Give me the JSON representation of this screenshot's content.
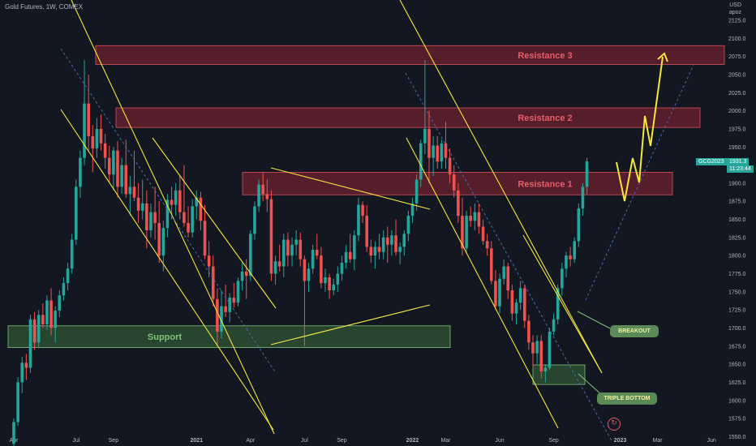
{
  "header": {
    "title": "Gold Futures, 1W, COMEX"
  },
  "price_axis": {
    "unit_line1": "USD",
    "unit_line2": "apoz"
  },
  "current_price": {
    "symbol": "GCG2023",
    "price": "1931.3",
    "countdown": "11:23:44",
    "color": "#26a69a"
  },
  "colors": {
    "background": "#131722",
    "up": "#26a69a",
    "down": "#ef5350",
    "resistance_fill": "#8c2532",
    "resistance_border": "#e0505c",
    "support_fill": "#3b6b3a",
    "support_border": "#7fc27a",
    "trendline": "#f5e642"
  },
  "annotations": {
    "resistance1": "Resistance 1",
    "resistance2": "Resistance 2",
    "resistance3": "Resistance 3",
    "support": "Support",
    "breakout": "BREAKOUT",
    "triple_bottom": "TRIPLE BOTTOM"
  },
  "chart_data": {
    "type": "candlestick",
    "title": "Gold Futures, 1W, COMEX",
    "ylabel": "USD apoz",
    "ylim": [
      1537,
      2153
    ],
    "y_ticks": [
      1550,
      1575,
      1600,
      1625,
      1650,
      1675,
      1700,
      1725,
      1750,
      1775,
      1800,
      1825,
      1850,
      1875,
      1900,
      1925,
      1950,
      1975,
      2000,
      2025,
      2050,
      2075,
      2100,
      2125
    ],
    "x_tick_labels": [
      "Apr",
      "Jul",
      "Sep",
      "2021",
      "Apr",
      "Jul",
      "Sep",
      "2022",
      "Mar",
      "Jun",
      "Sep",
      "2023",
      "Mar",
      "Jun"
    ],
    "x_tick_weeks": [
      0,
      15,
      24,
      44,
      57,
      70,
      79,
      96,
      104,
      117,
      130,
      146,
      155,
      168
    ],
    "series": [
      {
        "ohlc": [
          [
            1540,
            1575,
            1530,
            1570
          ],
          [
            1570,
            1632,
            1565,
            1625
          ],
          [
            1625,
            1660,
            1610,
            1652
          ],
          [
            1652,
            1664,
            1628,
            1645
          ],
          [
            1645,
            1718,
            1638,
            1712
          ],
          [
            1712,
            1722,
            1670,
            1680
          ],
          [
            1680,
            1725,
            1672,
            1718
          ],
          [
            1718,
            1734,
            1700,
            1705
          ],
          [
            1705,
            1745,
            1698,
            1738
          ],
          [
            1738,
            1755,
            1690,
            1700
          ],
          [
            1700,
            1730,
            1680,
            1724
          ],
          [
            1724,
            1752,
            1715,
            1745
          ],
          [
            1745,
            1770,
            1738,
            1762
          ],
          [
            1762,
            1790,
            1752,
            1782
          ],
          [
            1782,
            1830,
            1775,
            1822
          ],
          [
            1822,
            1905,
            1815,
            1895
          ],
          [
            1895,
            1945,
            1880,
            1935
          ],
          [
            1935,
            2070,
            1925,
            2010
          ],
          [
            2010,
            2050,
            1945,
            1965
          ],
          [
            1965,
            1980,
            1915,
            1948
          ],
          [
            1948,
            1990,
            1935,
            1975
          ],
          [
            1975,
            1995,
            1945,
            1955
          ],
          [
            1955,
            1968,
            1920,
            1935
          ],
          [
            1935,
            1952,
            1900,
            1912
          ],
          [
            1912,
            1950,
            1890,
            1945
          ],
          [
            1945,
            1958,
            1880,
            1895
          ],
          [
            1895,
            1935,
            1885,
            1925
          ],
          [
            1925,
            1960,
            1880,
            1885
          ],
          [
            1885,
            1910,
            1855,
            1895
          ],
          [
            1895,
            1945,
            1875,
            1880
          ],
          [
            1880,
            1900,
            1845,
            1862
          ],
          [
            1862,
            1905,
            1850,
            1872
          ],
          [
            1872,
            1890,
            1810,
            1835
          ],
          [
            1835,
            1872,
            1825,
            1860
          ],
          [
            1860,
            1895,
            1822,
            1845
          ],
          [
            1845,
            1875,
            1790,
            1800
          ],
          [
            1800,
            1848,
            1778,
            1838
          ],
          [
            1838,
            1885,
            1825,
            1877
          ],
          [
            1877,
            1895,
            1850,
            1870
          ],
          [
            1870,
            1900,
            1855,
            1890
          ],
          [
            1890,
            1910,
            1850,
            1860
          ],
          [
            1860,
            1925,
            1840,
            1845
          ],
          [
            1845,
            1868,
            1825,
            1832
          ],
          [
            1832,
            1878,
            1825,
            1868
          ],
          [
            1868,
            1890,
            1850,
            1880
          ],
          [
            1880,
            1888,
            1835,
            1848
          ],
          [
            1848,
            1870,
            1795,
            1800
          ],
          [
            1800,
            1820,
            1770,
            1785
          ],
          [
            1785,
            1800,
            1730,
            1740
          ],
          [
            1740,
            1755,
            1675,
            1695
          ],
          [
            1695,
            1752,
            1685,
            1730
          ],
          [
            1730,
            1760,
            1715,
            1722
          ],
          [
            1722,
            1748,
            1708,
            1742
          ],
          [
            1742,
            1762,
            1728,
            1735
          ],
          [
            1735,
            1770,
            1730,
            1765
          ],
          [
            1765,
            1790,
            1752,
            1778
          ],
          [
            1778,
            1795,
            1740,
            1772
          ],
          [
            1772,
            1835,
            1765,
            1830
          ],
          [
            1830,
            1875,
            1822,
            1868
          ],
          [
            1868,
            1905,
            1860,
            1898
          ],
          [
            1898,
            1915,
            1875,
            1885
          ],
          [
            1885,
            1905,
            1860,
            1878
          ],
          [
            1878,
            1890,
            1765,
            1775
          ],
          [
            1775,
            1800,
            1760,
            1792
          ],
          [
            1792,
            1815,
            1778,
            1785
          ],
          [
            1785,
            1830,
            1770,
            1822
          ],
          [
            1822,
            1832,
            1785,
            1800
          ],
          [
            1800,
            1825,
            1785,
            1815
          ],
          [
            1815,
            1835,
            1800,
            1822
          ],
          [
            1822,
            1832,
            1785,
            1795
          ],
          [
            1795,
            1800,
            1675,
            1765
          ],
          [
            1765,
            1790,
            1750,
            1782
          ],
          [
            1782,
            1815,
            1775,
            1808
          ],
          [
            1808,
            1830,
            1795,
            1800
          ],
          [
            1800,
            1812,
            1755,
            1762
          ],
          [
            1762,
            1782,
            1750,
            1770
          ],
          [
            1770,
            1775,
            1740,
            1752
          ],
          [
            1752,
            1768,
            1745,
            1760
          ],
          [
            1760,
            1785,
            1750,
            1775
          ],
          [
            1775,
            1800,
            1765,
            1790
          ],
          [
            1790,
            1815,
            1782,
            1805
          ],
          [
            1805,
            1830,
            1790,
            1795
          ],
          [
            1795,
            1835,
            1780,
            1828
          ],
          [
            1828,
            1880,
            1820,
            1870
          ],
          [
            1870,
            1875,
            1845,
            1855
          ],
          [
            1855,
            1870,
            1805,
            1812
          ],
          [
            1812,
            1822,
            1790,
            1800
          ],
          [
            1800,
            1820,
            1782,
            1812
          ],
          [
            1812,
            1830,
            1795,
            1805
          ],
          [
            1805,
            1835,
            1795,
            1825
          ],
          [
            1825,
            1840,
            1790,
            1815
          ],
          [
            1815,
            1835,
            1800,
            1828
          ],
          [
            1828,
            1850,
            1800,
            1805
          ],
          [
            1805,
            1818,
            1788,
            1812
          ],
          [
            1812,
            1835,
            1800,
            1830
          ],
          [
            1830,
            1862,
            1820,
            1855
          ],
          [
            1855,
            1880,
            1845,
            1872
          ],
          [
            1872,
            1912,
            1862,
            1905
          ],
          [
            1905,
            1960,
            1895,
            1955
          ],
          [
            1955,
            2070,
            1940,
            1975
          ],
          [
            1975,
            2000,
            1900,
            1935
          ],
          [
            1935,
            1965,
            1910,
            1952
          ],
          [
            1952,
            1965,
            1920,
            1930
          ],
          [
            1930,
            1960,
            1920,
            1955
          ],
          [
            1955,
            1985,
            1920,
            1935
          ],
          [
            1935,
            1948,
            1900,
            1912
          ],
          [
            1912,
            1925,
            1880,
            1890
          ],
          [
            1890,
            1900,
            1845,
            1855
          ],
          [
            1855,
            1880,
            1800,
            1810
          ],
          [
            1810,
            1862,
            1805,
            1855
          ],
          [
            1855,
            1868,
            1840,
            1848
          ],
          [
            1848,
            1872,
            1835,
            1860
          ],
          [
            1860,
            1872,
            1830,
            1840
          ],
          [
            1840,
            1850,
            1815,
            1820
          ],
          [
            1820,
            1830,
            1800,
            1810
          ],
          [
            1810,
            1820,
            1760,
            1765
          ],
          [
            1765,
            1780,
            1725,
            1730
          ],
          [
            1730,
            1775,
            1720,
            1768
          ],
          [
            1768,
            1795,
            1760,
            1785
          ],
          [
            1785,
            1790,
            1740,
            1752
          ],
          [
            1752,
            1760,
            1710,
            1720
          ],
          [
            1720,
            1740,
            1705,
            1735
          ],
          [
            1735,
            1765,
            1725,
            1755
          ],
          [
            1755,
            1760,
            1700,
            1710
          ],
          [
            1710,
            1718,
            1670,
            1680
          ],
          [
            1680,
            1690,
            1645,
            1665
          ],
          [
            1665,
            1690,
            1650,
            1682
          ],
          [
            1682,
            1690,
            1630,
            1640
          ],
          [
            1640,
            1650,
            1625,
            1645
          ],
          [
            1645,
            1700,
            1642,
            1695
          ],
          [
            1695,
            1720,
            1690,
            1712
          ],
          [
            1712,
            1760,
            1705,
            1755
          ],
          [
            1755,
            1790,
            1745,
            1782
          ],
          [
            1782,
            1805,
            1770,
            1800
          ],
          [
            1800,
            1812,
            1785,
            1795
          ],
          [
            1795,
            1825,
            1790,
            1820
          ],
          [
            1820,
            1872,
            1812,
            1865
          ],
          [
            1865,
            1900,
            1855,
            1895
          ],
          [
            1895,
            1935,
            1885,
            1930
          ]
        ]
      }
    ],
    "zones": [
      {
        "name": "Resistance 3",
        "y_range": [
          2064,
          2090
        ]
      },
      {
        "name": "Resistance 2",
        "y_range": [
          1977,
          2004
        ]
      },
      {
        "name": "Resistance 1",
        "y_range": [
          1884,
          1915
        ]
      },
      {
        "name": "Support",
        "y_range": [
          1673,
          1703
        ]
      },
      {
        "name": "Triple bottom",
        "y_range": [
          1622,
          1649
        ]
      }
    ]
  }
}
